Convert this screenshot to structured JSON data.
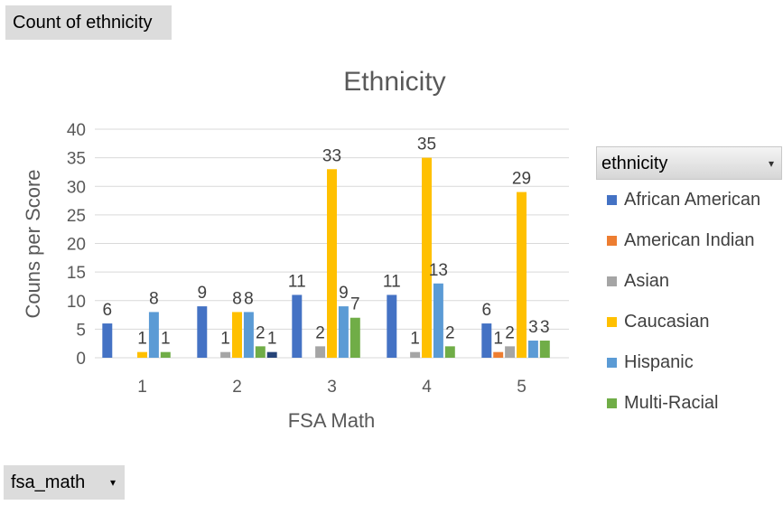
{
  "value_field": {
    "label": "Count of ethnicity"
  },
  "axis_field": {
    "label": "fsa_math",
    "dropdown": "▾"
  },
  "legend_field": {
    "label": "ethnicity",
    "dropdown": "▾"
  },
  "chart_data": {
    "type": "bar",
    "title": "Ethnicity",
    "xlabel": "FSA Math",
    "ylabel": "Couns per Score",
    "ylim": [
      0,
      40
    ],
    "yticks": [
      0,
      5,
      10,
      15,
      20,
      25,
      30,
      35,
      40
    ],
    "grid": true,
    "legend": "right",
    "categories": [
      "1",
      "2",
      "3",
      "4",
      "5"
    ],
    "series": [
      {
        "name": "African American",
        "color": "#4472c4",
        "values": [
          6,
          9,
          11,
          11,
          6
        ]
      },
      {
        "name": "American Indian",
        "color": "#ed7d31",
        "values": [
          null,
          null,
          null,
          null,
          1
        ]
      },
      {
        "name": "Asian",
        "color": "#a5a5a5",
        "values": [
          null,
          1,
          2,
          1,
          2
        ]
      },
      {
        "name": "Caucasian",
        "color": "#ffc000",
        "values": [
          1,
          8,
          33,
          35,
          29
        ]
      },
      {
        "name": "Hispanic",
        "color": "#5b9bd5",
        "values": [
          8,
          8,
          9,
          13,
          3
        ]
      },
      {
        "name": "Multi-Racial",
        "color": "#70ad47",
        "values": [
          1,
          2,
          7,
          2,
          3
        ]
      },
      {
        "name": "",
        "color": "#264478",
        "values": [
          null,
          1,
          null,
          null,
          null
        ]
      }
    ]
  }
}
